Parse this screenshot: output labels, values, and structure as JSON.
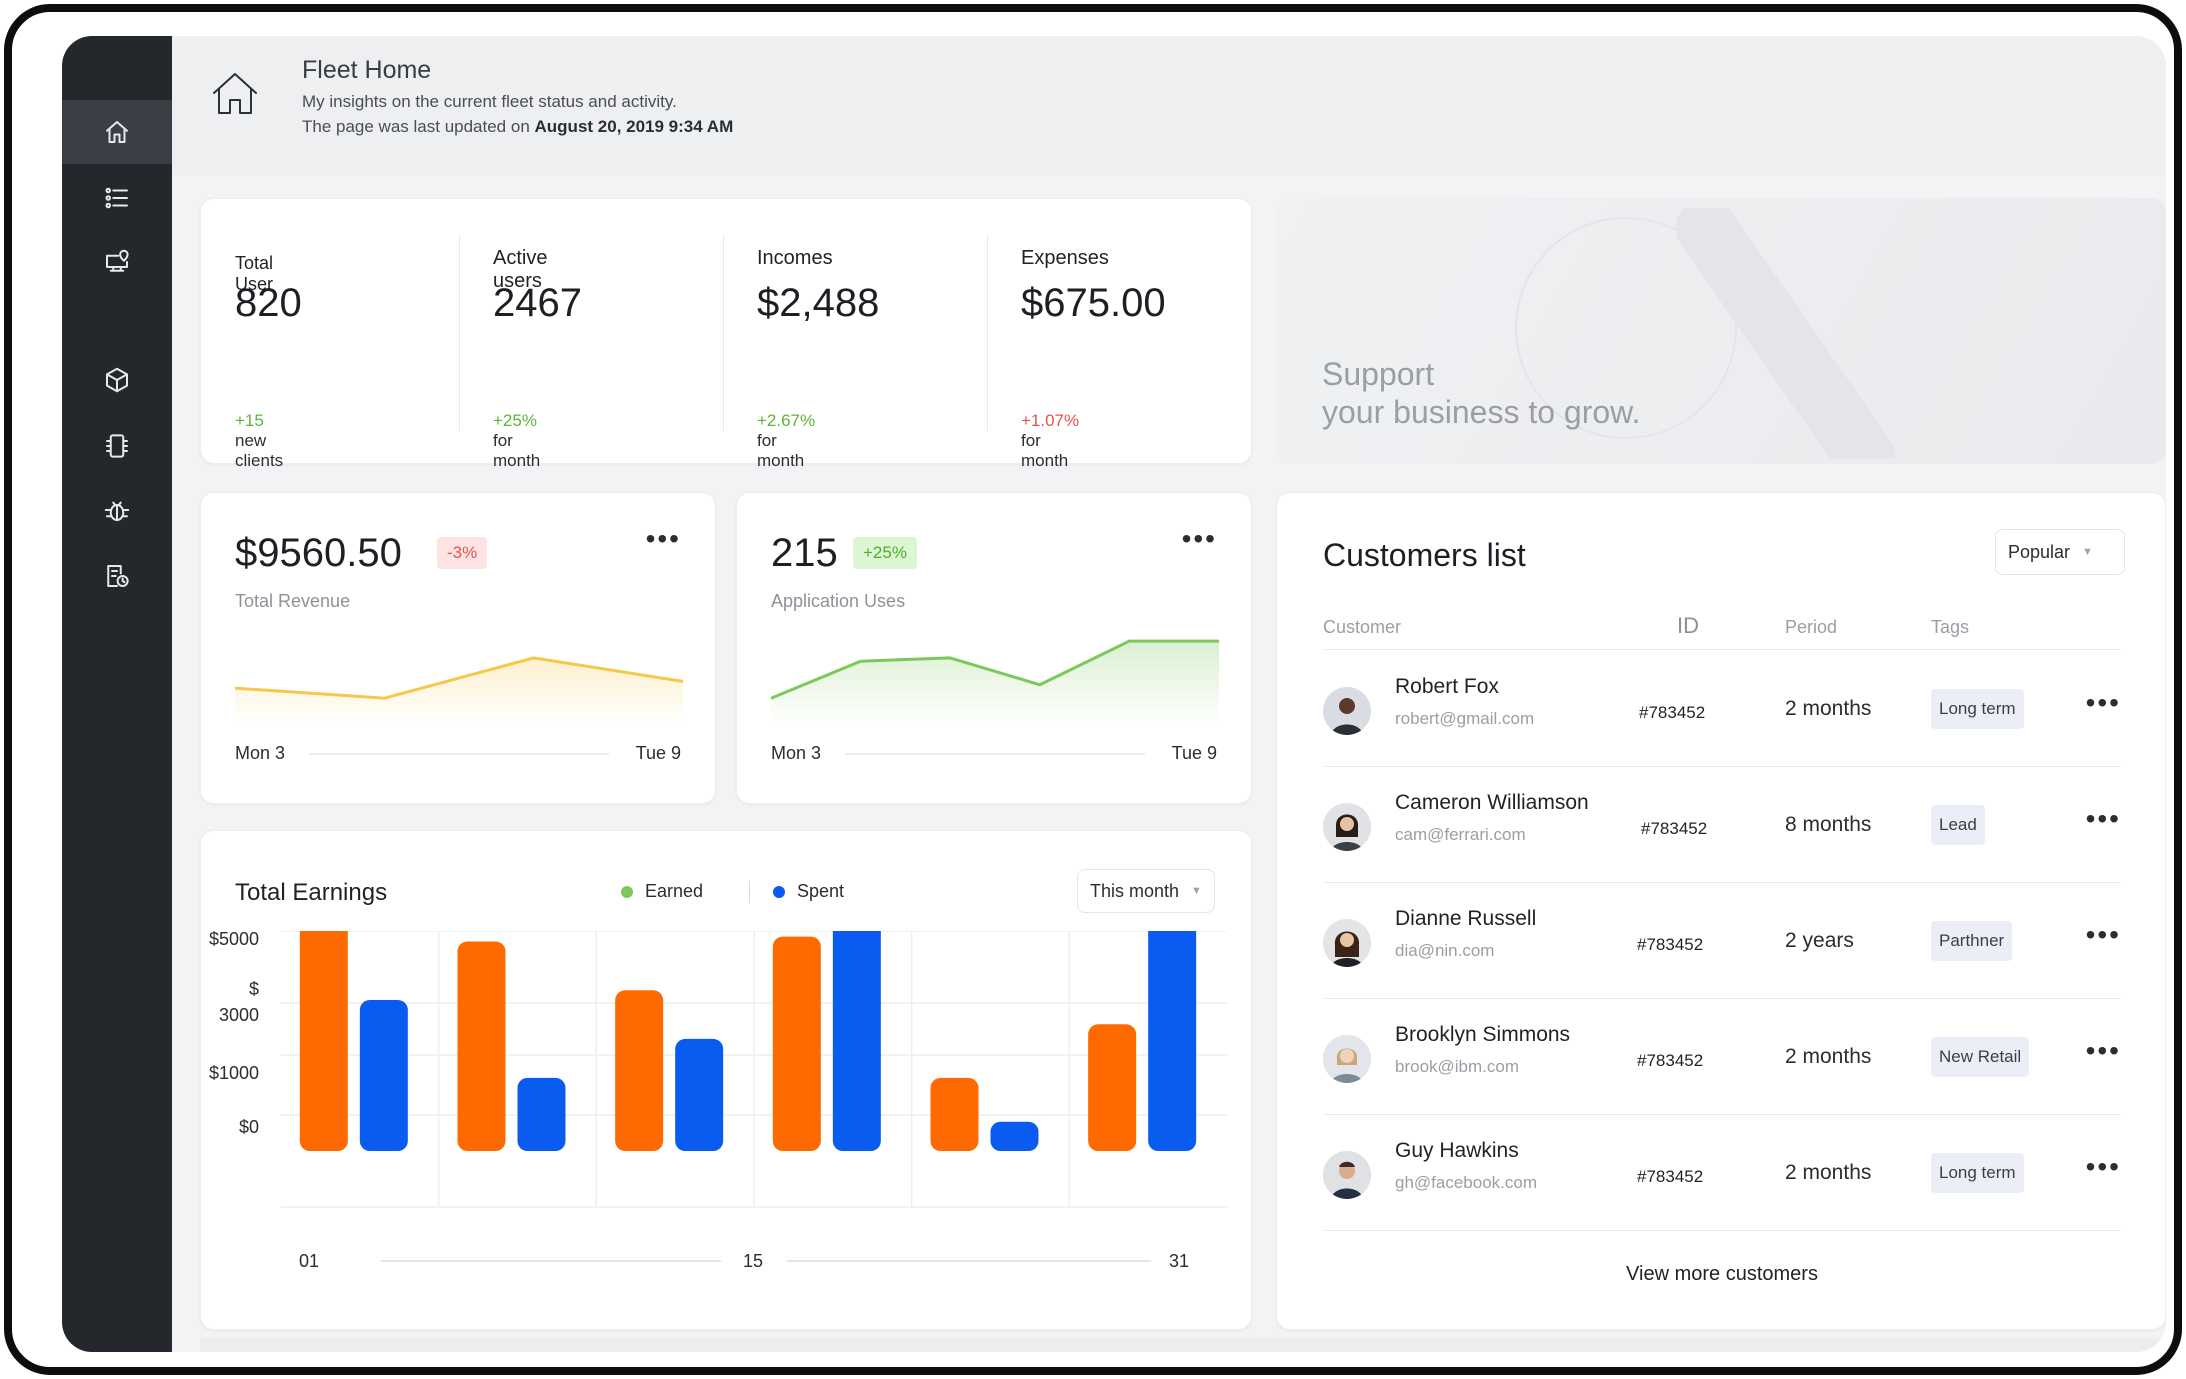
{
  "header": {
    "title": "Fleet Home",
    "subtitle": "My insights on the current fleet status and activity.",
    "updated_prefix": "The page was last updated on",
    "updated_date": "August 20, 2019 9:34 AM"
  },
  "sidebar": {
    "items": [
      {
        "icon": "home-icon",
        "active": true
      },
      {
        "icon": "list-icon",
        "active": false
      },
      {
        "icon": "monitor-location-icon",
        "active": false
      },
      {
        "icon": "cube-icon",
        "active": false
      },
      {
        "icon": "chip-icon",
        "active": false
      },
      {
        "icon": "bug-icon",
        "active": false
      },
      {
        "icon": "report-clock-icon",
        "active": false
      }
    ]
  },
  "stats": [
    {
      "label": "Total User",
      "value": "820",
      "change": "+15",
      "change_suffix": "new clients",
      "trend": "positive"
    },
    {
      "label": "Active users",
      "value": "2467",
      "change": "+25%",
      "change_suffix": "for month",
      "trend": "positive"
    },
    {
      "label": "Incomes",
      "value": "$2,488",
      "change": "+2.67%",
      "change_suffix": "for month",
      "trend": "positive"
    },
    {
      "label": "Expenses",
      "value": "$675.00",
      "change": "+1.07%",
      "change_suffix": "for month",
      "trend": "negative"
    }
  ],
  "promo": {
    "line1": "Support",
    "line2": "your business to grow."
  },
  "revenue": {
    "value": "$9560.50",
    "badge": "-3%",
    "caption": "Total Revenue",
    "start_label": "Mon 3",
    "end_label": "Tue 9",
    "color": "#f5c84c"
  },
  "apps": {
    "value": "215",
    "badge": "+25%",
    "caption": "Application Uses",
    "start_label": "Mon 3",
    "end_label": "Tue 9",
    "color": "#7cc85a"
  },
  "earnings": {
    "title": "Total Earnings",
    "legend": {
      "earned": "Earned",
      "spent": "Spent"
    },
    "filter": "This month"
  },
  "chart_data": [
    {
      "type": "line",
      "x": [
        0,
        1,
        2,
        3
      ],
      "series": [
        {
          "values": [
            8,
            5,
            17,
            10
          ]
        }
      ]
    },
    {
      "type": "line",
      "x": [
        0,
        1,
        2,
        3,
        4,
        5
      ],
      "series": [
        {
          "values": [
            5,
            16,
            17,
            9,
            22,
            22
          ]
        }
      ]
    },
    {
      "type": "bar",
      "x_ticks": [
        "01",
        "15",
        "31"
      ],
      "y_ticks": [
        "$5000",
        "$\n3000",
        "$1000",
        "$0"
      ],
      "series": [
        {
          "name": "Earned",
          "color": "#ff6a00",
          "values": [
            5300,
            4300,
            3300,
            4400,
            1500,
            2600
          ]
        },
        {
          "name": "Spent",
          "color": "#0a5cf0",
          "values": [
            3100,
            1500,
            2300,
            5000,
            600,
            5000
          ]
        }
      ],
      "ylim": [
        0,
        5500
      ]
    }
  ],
  "customers": {
    "title": "Customers list",
    "sort": "Popular",
    "columns": {
      "customer": "Customer",
      "id": "ID",
      "period": "Period",
      "tags": "Tags"
    },
    "rows": [
      {
        "name": "Robert Fox",
        "email": "robert@gmail.com",
        "id": "#783452",
        "period": "2 months",
        "tag": "Long term"
      },
      {
        "name": "Cameron Williamson",
        "email": "cam@ferrari.com",
        "id": "#783452",
        "period": "8 months",
        "tag": "Lead"
      },
      {
        "name": "Dianne Russell",
        "email": "dia@nin.com",
        "id": "#783452",
        "period": "2 years",
        "tag": "Parthner"
      },
      {
        "name": "Brooklyn Simmons",
        "email": "brook@ibm.com",
        "id": "#783452",
        "period": "2 months",
        "tag": "New Retail"
      },
      {
        "name": "Guy Hawkins",
        "email": "gh@facebook.com",
        "id": "#783452",
        "period": "2 months",
        "tag": "Long term"
      }
    ],
    "view_more": "View more customers"
  }
}
